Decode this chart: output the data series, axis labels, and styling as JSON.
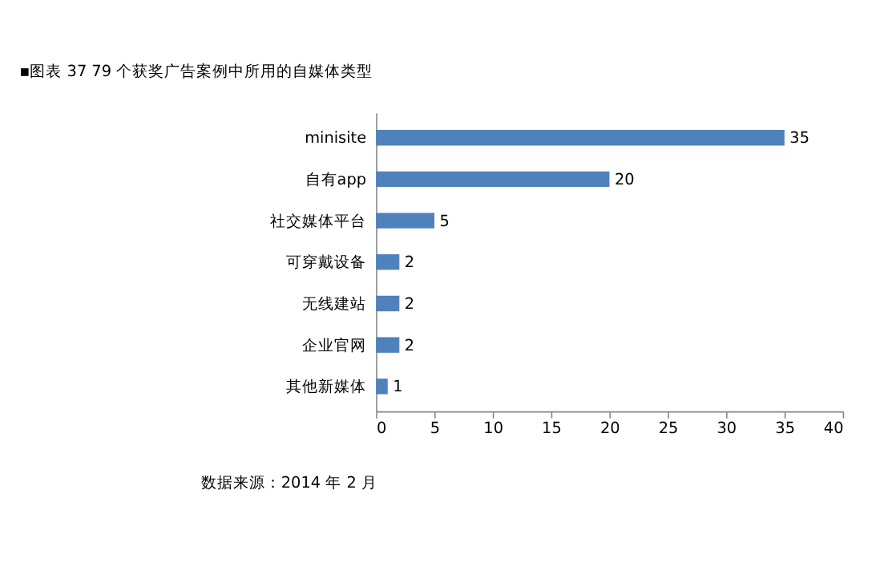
{
  "chart_data": {
    "type": "bar",
    "orientation": "horizontal",
    "title": "▪图表 37 79 个获奖广告案例中所用的自媒体类型",
    "categories": [
      "minisite",
      "自有app",
      "社交媒体平台",
      "可穿戴设备",
      "无线建站",
      "企业官网",
      "其他新媒体"
    ],
    "values": [
      35,
      20,
      5,
      2,
      2,
      2,
      1
    ],
    "color": "#4f81bd",
    "xlim": [
      0,
      40
    ],
    "xticks": [
      0,
      5,
      10,
      15,
      20,
      25,
      30,
      35,
      40
    ],
    "data_labels": true,
    "annotations": [
      "数据来源：2014 年 2 月"
    ]
  }
}
